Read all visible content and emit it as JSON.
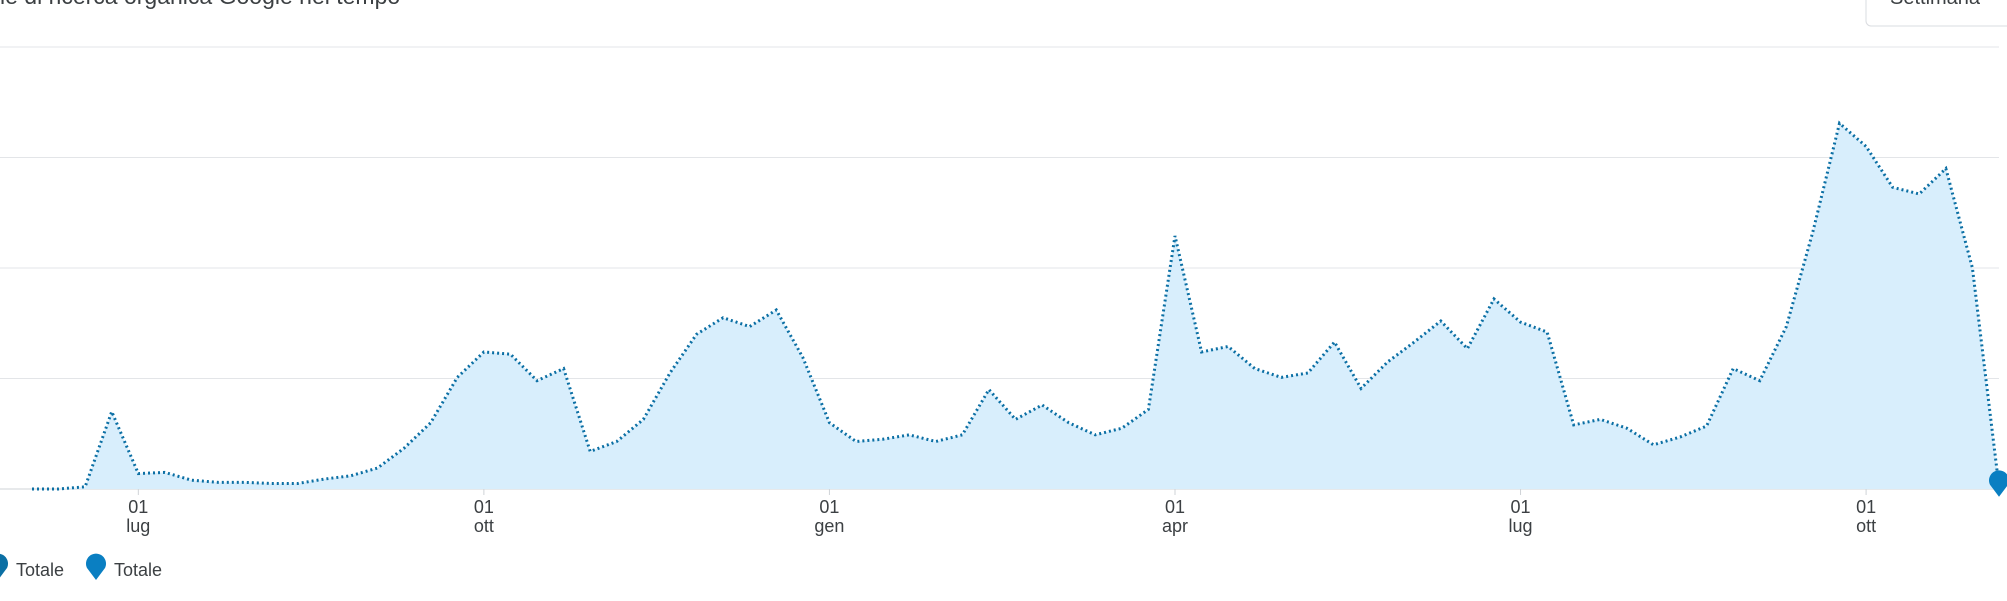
{
  "chart_data": {
    "type": "area",
    "title": "le di ricerca organica Google nel tempo",
    "categories": [
      null,
      null,
      null,
      null,
      [
        "01",
        "lug"
      ],
      null,
      null,
      null,
      null,
      null,
      null,
      null,
      null,
      null,
      null,
      null,
      null,
      [
        "01",
        "ott"
      ],
      null,
      null,
      null,
      null,
      null,
      null,
      null,
      null,
      null,
      null,
      null,
      null,
      [
        "01",
        "gen"
      ],
      null,
      null,
      null,
      null,
      null,
      null,
      null,
      null,
      null,
      null,
      null,
      null,
      [
        "01",
        "apr"
      ],
      null,
      null,
      null,
      null,
      null,
      null,
      null,
      null,
      null,
      null,
      null,
      null,
      [
        "01",
        "lug"
      ],
      null,
      null,
      null,
      null,
      null,
      null,
      null,
      null,
      null,
      null,
      null,
      null,
      [
        "01",
        "ott"
      ],
      null,
      null,
      null,
      null,
      null
    ],
    "series": [
      {
        "name": "Totale",
        "color": "#0b6fa4",
        "fill": "#d8eefc",
        "values": [
          0,
          0,
          0.02,
          0.7,
          0.14,
          0.15,
          0.08,
          0.06,
          0.06,
          0.05,
          0.05,
          0.09,
          0.12,
          0.19,
          0.37,
          0.6,
          1.01,
          1.24,
          1.22,
          0.98,
          1.09,
          0.34,
          0.43,
          0.63,
          1.05,
          1.4,
          1.55,
          1.47,
          1.62,
          1.19,
          0.6,
          0.43,
          0.45,
          0.49,
          0.43,
          0.49,
          0.9,
          0.63,
          0.76,
          0.6,
          0.49,
          0.55,
          0.72,
          2.29,
          1.24,
          1.29,
          1.09,
          1.01,
          1.05,
          1.33,
          0.91,
          1.15,
          1.33,
          1.52,
          1.27,
          1.72,
          1.51,
          1.42,
          0.58,
          0.63,
          0.55,
          0.4,
          0.47,
          0.57,
          1.09,
          0.98,
          1.47,
          2.33,
          3.31,
          3.1,
          2.73,
          2.67,
          2.9,
          2.0,
          0.02
        ]
      },
      {
        "name": "Totale",
        "color": "#0a7fc2",
        "values": [
          null,
          null,
          null,
          null,
          null,
          null,
          null,
          null,
          null,
          null,
          null,
          null,
          null,
          null,
          null,
          null,
          null,
          null,
          null,
          null,
          null,
          null,
          null,
          null,
          null,
          null,
          null,
          null,
          null,
          null,
          null,
          null,
          null,
          null,
          null,
          null,
          null,
          null,
          null,
          null,
          null,
          null,
          null,
          null,
          null,
          null,
          null,
          null,
          null,
          null,
          null,
          null,
          null,
          null,
          null,
          null,
          null,
          null,
          null,
          null,
          null,
          null,
          null,
          null,
          null,
          null,
          null,
          null,
          null,
          null,
          null,
          null,
          null,
          null,
          0.02
        ]
      }
    ],
    "ylim": [
      0,
      4
    ],
    "yticks": [
      0,
      1,
      2,
      3,
      4
    ],
    "grid": true
  },
  "controls": {
    "interval": "Settimana"
  }
}
